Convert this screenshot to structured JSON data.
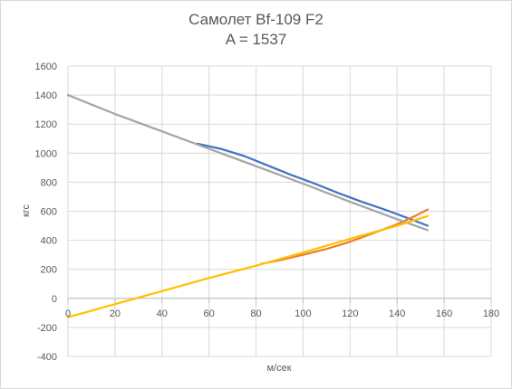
{
  "chart_data": {
    "type": "line",
    "title": "Самолет Bf-109 F2",
    "subtitle": "A = 1537",
    "xlabel": "м/сек",
    "ylabel": "кгс",
    "xlim": [
      0,
      180
    ],
    "ylim": [
      -400,
      1600
    ],
    "x_ticks": [
      0,
      20,
      40,
      60,
      80,
      100,
      120,
      140,
      160,
      180
    ],
    "y_ticks": [
      -400,
      -200,
      0,
      200,
      400,
      600,
      800,
      1000,
      1200,
      1400,
      1600
    ],
    "grid": true,
    "legend": "none",
    "series": [
      {
        "color": "#4472c4",
        "x": [
          55,
          65,
          75,
          85,
          95,
          105,
          115,
          125,
          135,
          145,
          153
        ],
        "y": [
          1065,
          1030,
          980,
          915,
          850,
          790,
          725,
          665,
          610,
          550,
          500
        ]
      },
      {
        "color": "#ed7d31",
        "x": [
          82,
          90,
          100,
          110,
          120,
          130,
          140,
          148,
          153
        ],
        "y": [
          237,
          262,
          300,
          340,
          390,
          450,
          510,
          570,
          612
        ]
      },
      {
        "color": "#a5a5a5",
        "x": [
          0,
          20,
          40,
          60,
          80,
          100,
          120,
          140,
          153
        ],
        "y": [
          1400,
          1270,
          1150,
          1030,
          910,
          790,
          665,
          545,
          470
        ]
      },
      {
        "color": "#ffc000",
        "x": [
          0,
          20,
          40,
          60,
          80,
          100,
          120,
          140,
          153
        ],
        "y": [
          -130,
          -40,
          50,
          140,
          225,
          315,
          410,
          500,
          567
        ]
      }
    ]
  }
}
